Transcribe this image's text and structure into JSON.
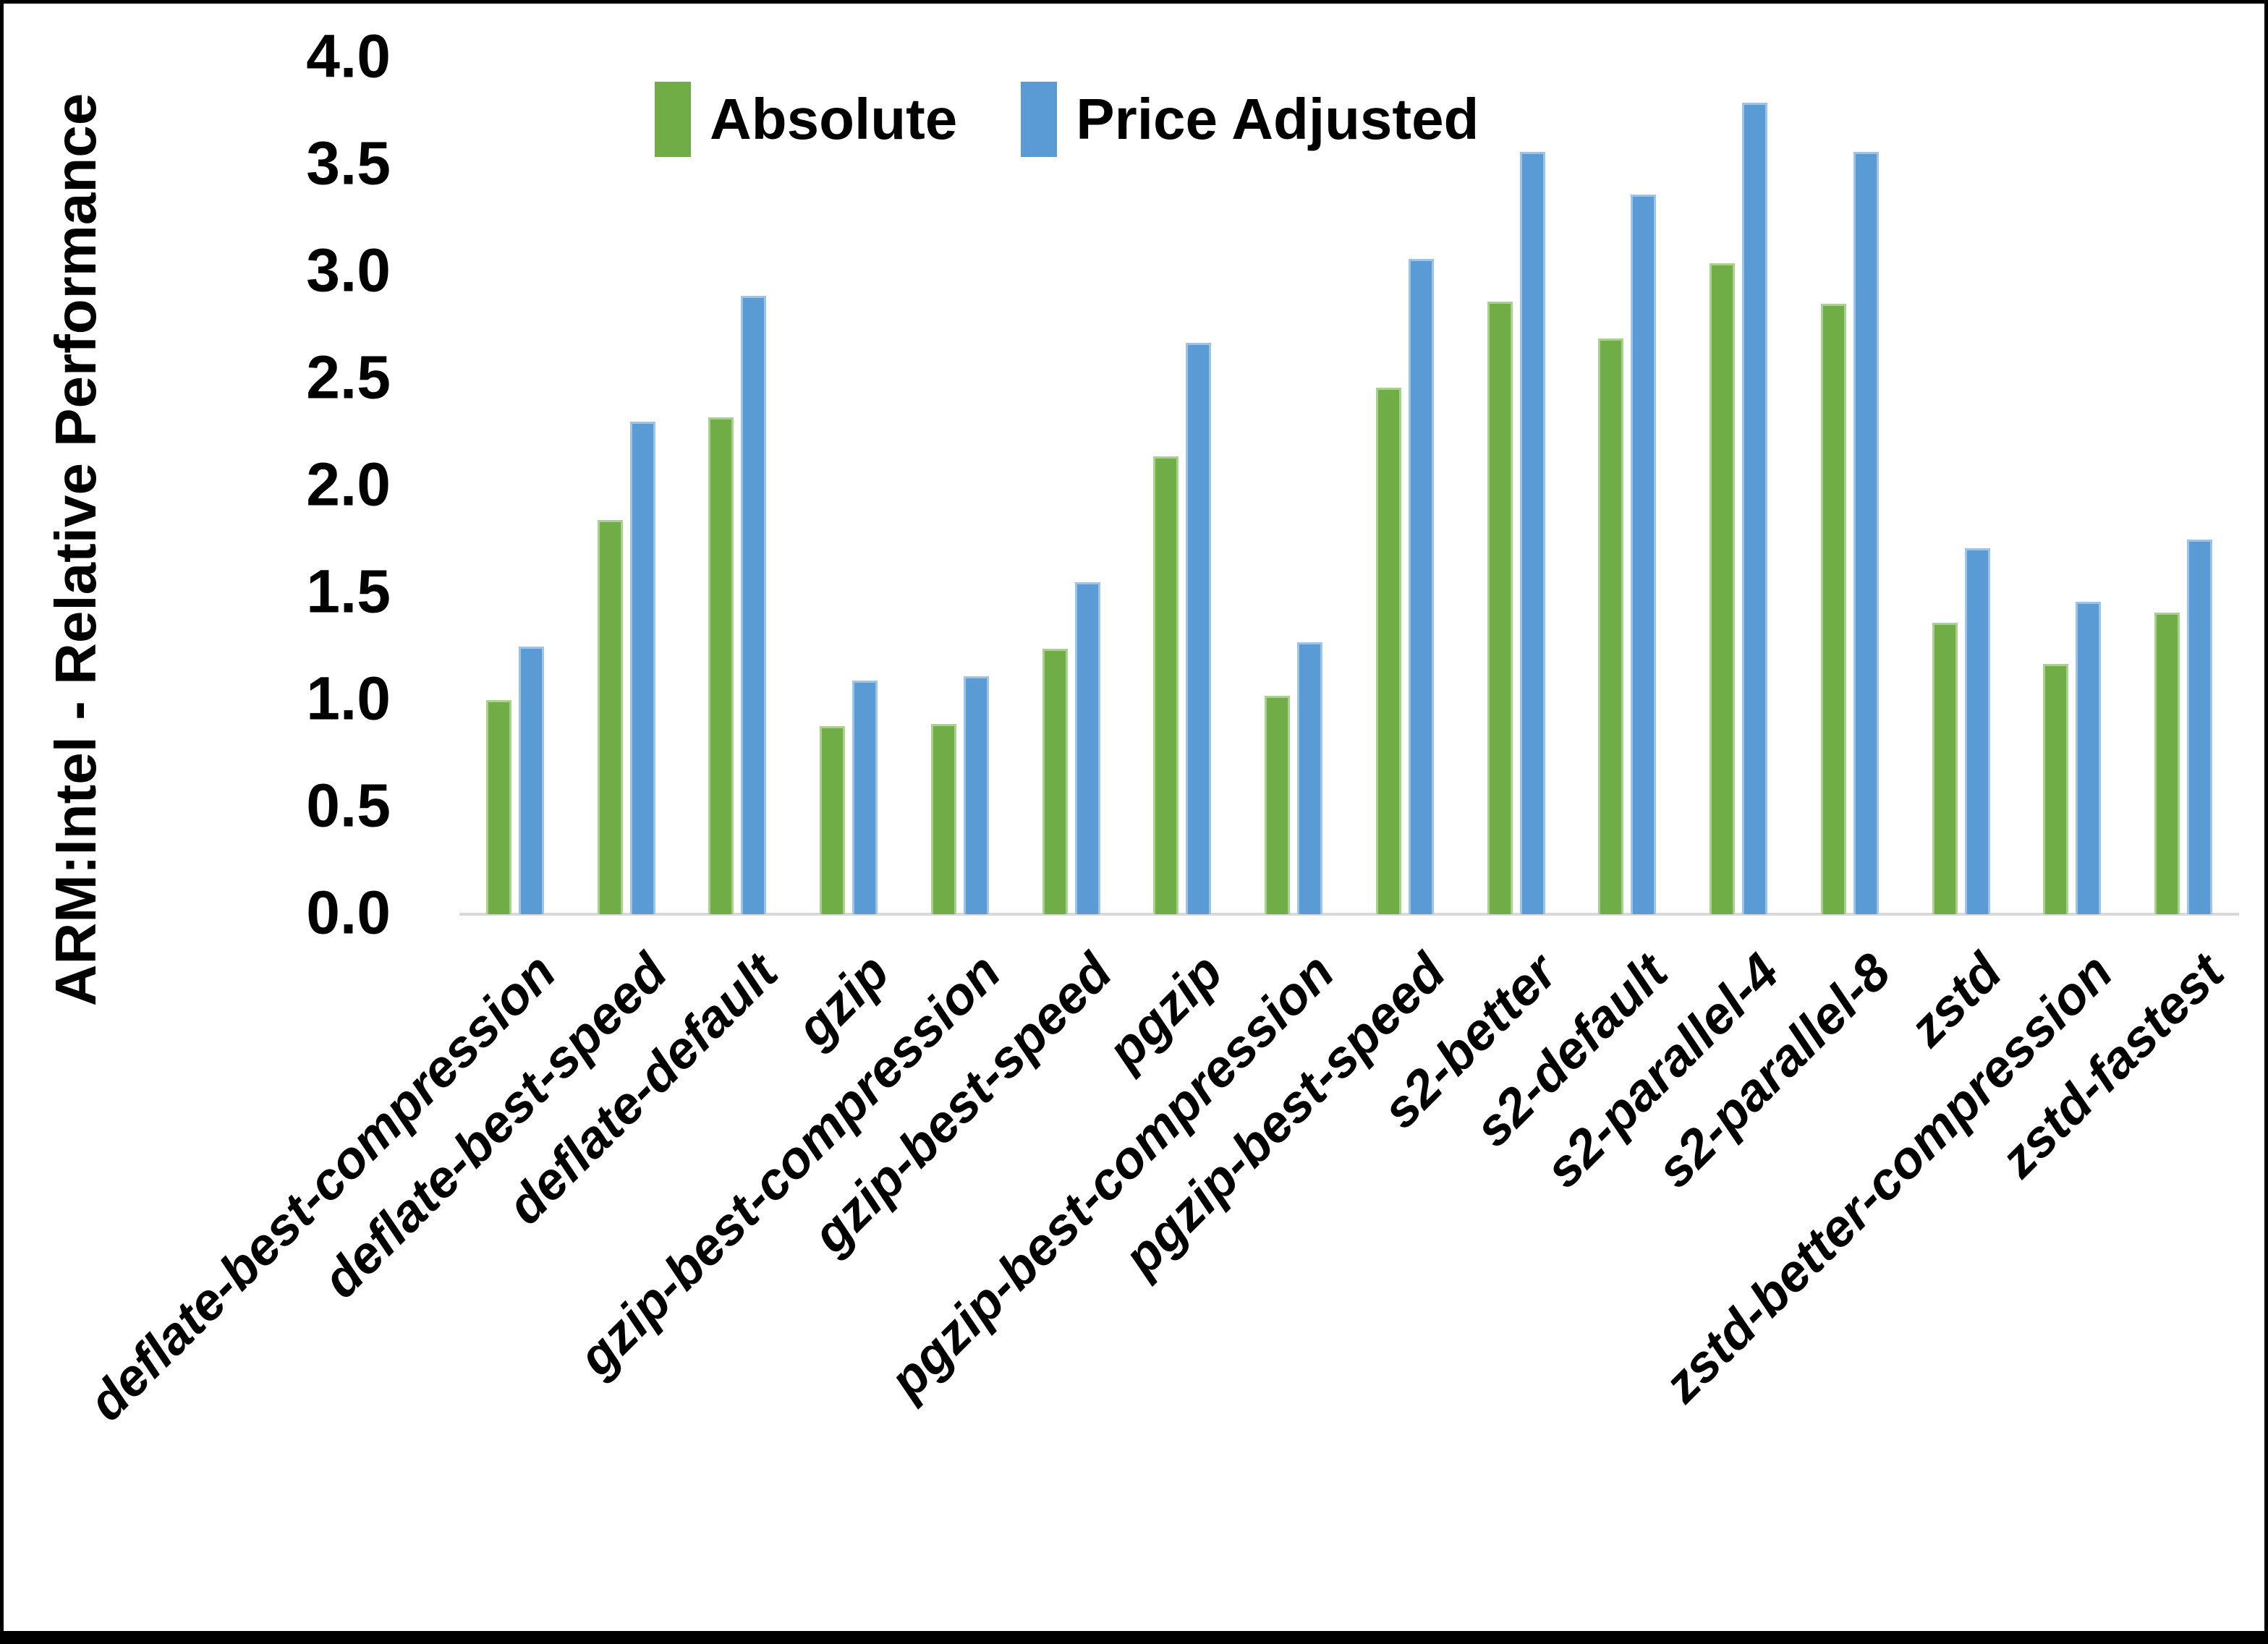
{
  "figure": {
    "background_color": "#ffffff",
    "border_color": "#000000"
  },
  "y_axis": {
    "title": "ARM:Intel - Relative Performance",
    "ticks": [
      "4.0",
      "3.5",
      "3.0",
      "2.5",
      "2.0",
      "1.5",
      "1.0",
      "0.5",
      "0.0"
    ],
    "axis_line_color": "#d9d9d9"
  },
  "legend": {
    "items": [
      {
        "label": "Absolute",
        "color": "#70AD47"
      },
      {
        "label": "Price Adjusted",
        "color": "#5B9BD5"
      }
    ]
  },
  "chart_data": {
    "type": "bar",
    "title": "",
    "xlabel": "",
    "ylabel": "ARM:Intel - Relative Performance",
    "ylim": [
      0,
      4
    ],
    "ytick_step": 0.5,
    "grid": false,
    "legend_position": "top-center",
    "categories": [
      "deflate-best-compression",
      "deflate-best-speed",
      "deflate-default",
      "gzip",
      "gzip-best-compression",
      "gzip-best-speed",
      "pgzip",
      "pgzip-best-compression",
      "pgzip-best-speed",
      "s2-better",
      "s2-default",
      "s2-parallel-4",
      "s2-parallel-8",
      "zstd",
      "zstd-better-compression",
      "zstd-fastest"
    ],
    "series": [
      {
        "name": "Absolute",
        "color": "#70AD47",
        "edge_color": "#A9D18E",
        "values": [
          1.0,
          1.84,
          2.32,
          0.88,
          0.89,
          1.24,
          2.14,
          1.02,
          2.46,
          2.86,
          2.69,
          3.04,
          2.85,
          1.36,
          1.17,
          1.41
        ]
      },
      {
        "name": "Price Adjusted",
        "color": "#5B9BD5",
        "edge_color": "#9DC3E6",
        "values": [
          1.25,
          2.3,
          2.89,
          1.09,
          1.11,
          1.55,
          2.67,
          1.27,
          3.06,
          3.56,
          3.36,
          3.79,
          3.56,
          1.71,
          1.46,
          1.75
        ]
      }
    ]
  }
}
